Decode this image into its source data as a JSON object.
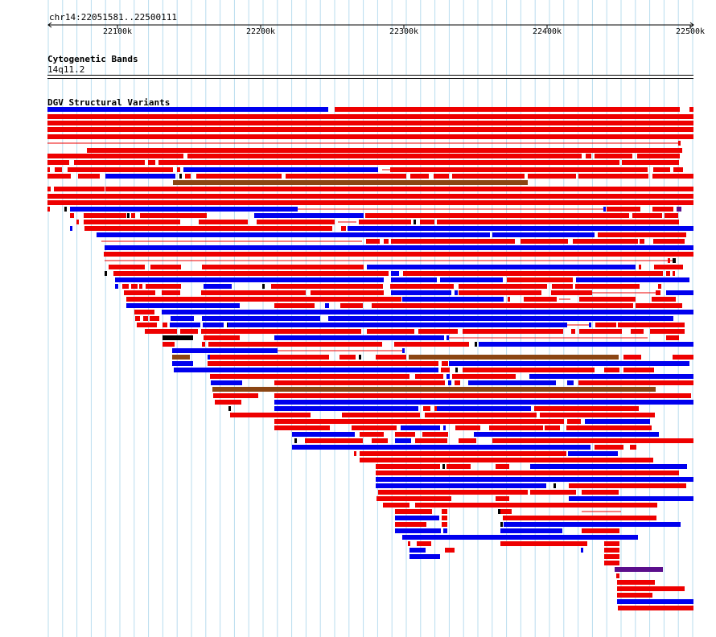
{
  "ruler": {
    "location": "chr14:22051581..22500111",
    "ticks": [
      "22100k",
      "22200k",
      "22300k",
      "22400k",
      "22500k"
    ]
  },
  "cytoband": {
    "title": "Cytogenetic Bands",
    "band": "14q11.2"
  },
  "dgv": {
    "title": "DGV Structural Variants"
  },
  "colors": {
    "gain": "#ee0000",
    "loss": "#0000ee",
    "gain_loss": "#8b4513",
    "inversion": "#000000",
    "other": "#5b0e8c",
    "grid": "#b8dcee"
  }
}
